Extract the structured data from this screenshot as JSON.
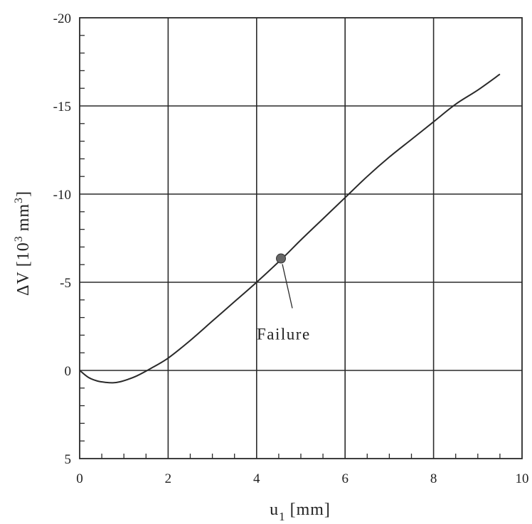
{
  "chart_data": {
    "type": "line",
    "title": "",
    "xlabel": "u",
    "xlabel_sub": "1",
    "xlabel_unit": "[mm]",
    "ylabel_main": "ΔV",
    "ylabel_unit_pre": "[10",
    "ylabel_unit_exp": "3",
    "ylabel_unit_mid": "mm",
    "ylabel_unit_post": "]",
    "xlim": [
      0,
      10
    ],
    "ylim": [
      5,
      -20
    ],
    "y_axis_inverted": true,
    "xticks": [
      0,
      2,
      4,
      6,
      8,
      10
    ],
    "yticks": [
      5,
      0,
      -5,
      -10,
      -15,
      -20
    ],
    "xtick_labels": [
      "0",
      "2",
      "4",
      "6",
      "8",
      "10"
    ],
    "ytick_labels": [
      "5",
      "0",
      "-5",
      "-10",
      "-15",
      "-20"
    ],
    "grid": true,
    "colors": {
      "line": "#2a2a2a",
      "grid": "#2a2a2a",
      "marker": "#666666"
    },
    "series": [
      {
        "x": [
          0,
          0.2,
          0.4,
          0.6,
          0.75,
          0.9,
          1.1,
          1.3,
          1.6,
          2.0,
          2.5,
          3.0,
          3.5,
          4.0,
          4.6,
          5.0,
          5.5,
          6.0,
          6.5,
          7.0,
          7.5,
          8.0,
          8.5,
          9.0,
          9.5
        ],
        "y": [
          0,
          0.4,
          0.6,
          0.68,
          0.7,
          0.65,
          0.5,
          0.3,
          -0.1,
          -0.7,
          -1.7,
          -2.8,
          -3.9,
          -5.0,
          -6.4,
          -7.4,
          -8.6,
          -9.8,
          -11.0,
          -12.1,
          -13.1,
          -14.1,
          -15.1,
          -15.9,
          -16.8
        ]
      }
    ],
    "annotations": [
      {
        "text": "Failure",
        "x": 4.55,
        "y": -6.35
      }
    ]
  }
}
